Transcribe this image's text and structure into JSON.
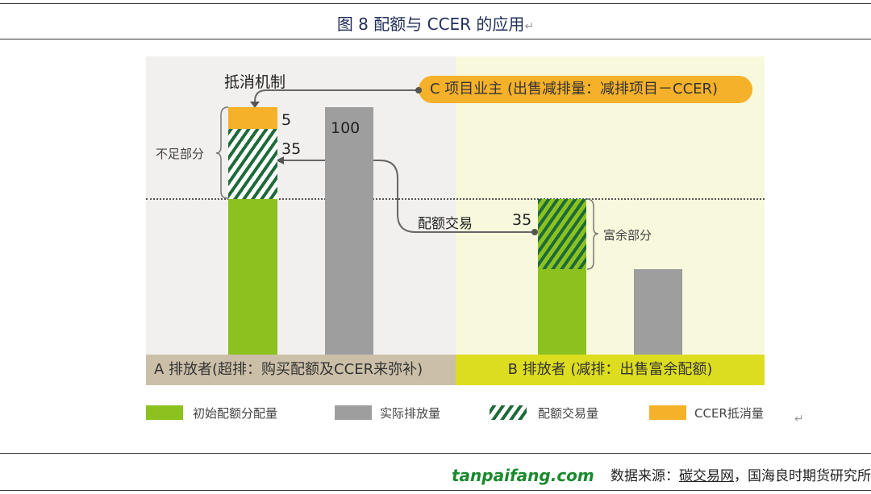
{
  "title": "图 8  配额与 CCER 的应用",
  "return_mark": "↵",
  "diagram": {
    "offset_mechanism": "抵消机制",
    "project_owner": "C 项目业主 (出售减排量：减排项目－CCER)",
    "shortfall_label": "不足部分",
    "surplus_label": "富余部分",
    "trade_label": "配额交易",
    "value_ccer": "5",
    "value_trade_a": "35",
    "value_actual_a": "100",
    "value_trade_b": "35",
    "emitter_a": "A 排放者(超排：购买配额及CCER来弥补)",
    "emitter_b": "B 排放者 (减排：出售富余配额)"
  },
  "legend": [
    "初始配额分配量",
    "实际排放量",
    "配额交易量",
    "CCER抵消量"
  ],
  "colors": {
    "allocation": "#8cc21f",
    "actual": "#9e9e9e",
    "trade": "#1e6b3a",
    "ccer": "#f6b12a"
  },
  "source": {
    "prefix": "数据来源：",
    "link": "碳交易网",
    "rest": "，国海良时期货研究所"
  },
  "watermark": "tanpaifang.com"
}
